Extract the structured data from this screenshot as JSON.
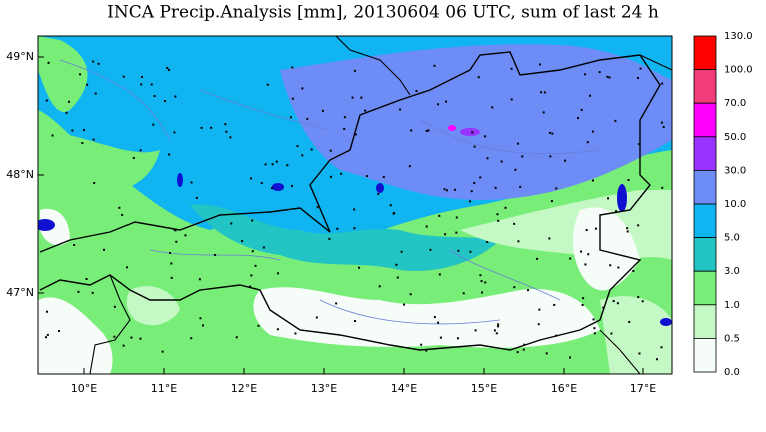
{
  "title": "INCA Precip.Analysis [mm], 20130604 06 UTC, sum of last 24 h",
  "lon_labels": [
    "10°E",
    "11°E",
    "12°E",
    "13°E",
    "14°E",
    "15°E",
    "16°E",
    "17°E"
  ],
  "lat_labels": [
    "49°N",
    "48°N",
    "47°N"
  ],
  "legend": {
    "labels": [
      "130.0",
      "100.0",
      "70.0",
      "50.0",
      "30.0",
      "10.0",
      "5.0",
      "3.0",
      "1.0",
      "0.5",
      "0.0"
    ],
    "colors": [
      "#ff0000",
      "#f03c78",
      "#ff00ff",
      "#9933ff",
      "#6e8cf5",
      "#10b4f0",
      "#22c4c4",
      "#78ee78",
      "#c4f8c4",
      "#f6fcf8"
    ]
  }
}
